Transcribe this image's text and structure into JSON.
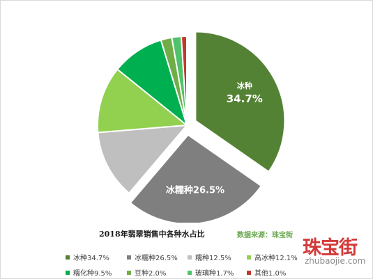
{
  "chart_data": {
    "type": "pie",
    "title": "2018年翡翠销售中各种水占比",
    "source": "数据来源：珠宝街",
    "slices": [
      {
        "label": "冰种",
        "value": 34.7,
        "color": "#548235",
        "exploded": true,
        "data_label": "冰种",
        "data_value": "34.7%"
      },
      {
        "label": "冰糯种",
        "value": 26.5,
        "color": "#7f7f7f",
        "exploded": true,
        "data_label": "冰糯种26.5%"
      },
      {
        "label": "糯种",
        "value": 12.5,
        "color": "#bfbfbf"
      },
      {
        "label": "高冰种",
        "value": 12.1,
        "color": "#92d050"
      },
      {
        "label": "糯化种",
        "value": 9.5,
        "color": "#00b050"
      },
      {
        "label": "豆种",
        "value": 2.0,
        "color": "#70ad47"
      },
      {
        "label": "玻璃种",
        "value": 1.7,
        "color": "#4fc26b"
      },
      {
        "label": "其他",
        "value": 1.0,
        "color": "#c0392b"
      }
    ],
    "legend": [
      {
        "text": "冰种34.7%",
        "color": "#548235"
      },
      {
        "text": "冰糯种26.5%",
        "color": "#7f7f7f"
      },
      {
        "text": "糯种12.5%",
        "color": "#bfbfbf"
      },
      {
        "text": "高冰种12.1%",
        "color": "#92d050"
      },
      {
        "text": "糯化种9.5%",
        "color": "#00b050"
      },
      {
        "text": "豆种2.0%",
        "color": "#70ad47"
      },
      {
        "text": "玻璃种1.7%",
        "color": "#4fc26b"
      },
      {
        "text": "其他1.0%",
        "color": "#c0392b"
      }
    ],
    "legend_position": "bottom"
  },
  "watermark": {
    "main": "珠宝街",
    "sub": "zhubaojie.com"
  }
}
